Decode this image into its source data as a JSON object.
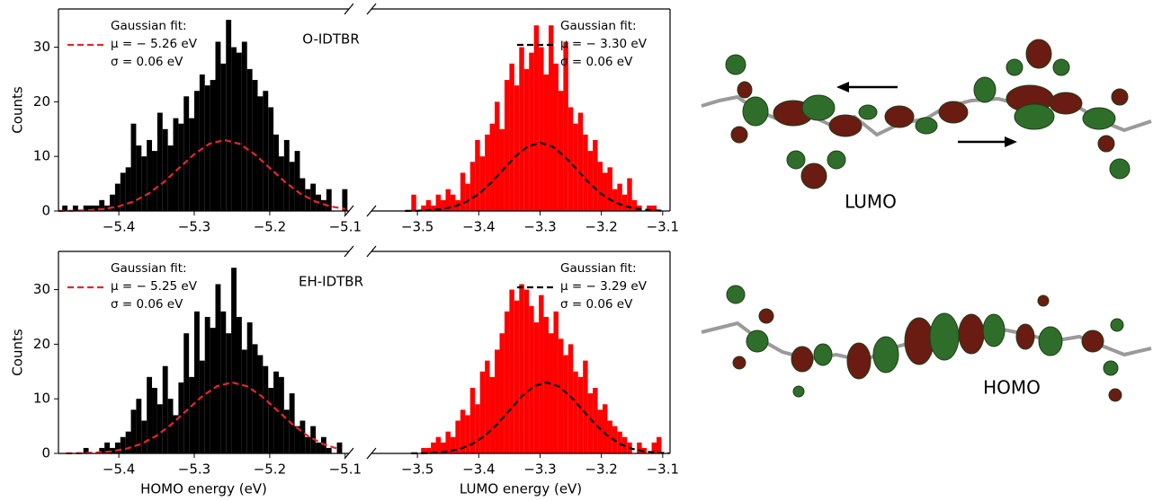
{
  "chart_data": [
    {
      "type": "histogram",
      "panel_label": "O-IDTBR",
      "ylabel": "Counts",
      "color": "#000000",
      "bins": [
        -5.475,
        -5.468,
        -5.461,
        -5.454,
        -5.447,
        -5.44,
        -5.433,
        -5.426,
        -5.419,
        -5.412,
        -5.405,
        -5.398,
        -5.391,
        -5.384,
        -5.377,
        -5.37,
        -5.363,
        -5.356,
        -5.349,
        -5.342,
        -5.335,
        -5.328,
        -5.321,
        -5.314,
        -5.307,
        -5.3,
        -5.293,
        -5.286,
        -5.279,
        -5.272,
        -5.265,
        -5.258,
        -5.251,
        -5.244,
        -5.237,
        -5.23,
        -5.223,
        -5.216,
        -5.209,
        -5.202,
        -5.195,
        -5.188,
        -5.181,
        -5.174,
        -5.167,
        -5.16,
        -5.153,
        -5.146,
        -5.139,
        -5.132,
        -5.125,
        -5.118,
        -5.111,
        -5.104,
        -5.097
      ],
      "values": [
        1,
        0,
        1,
        0,
        1,
        1,
        1,
        2,
        1,
        3,
        5,
        7,
        8,
        16,
        12,
        10,
        13,
        11,
        18,
        15,
        12,
        17,
        16,
        21,
        17,
        22,
        25,
        23,
        24,
        31,
        27,
        35,
        30,
        29,
        31,
        26,
        24,
        21,
        22,
        19,
        14,
        10,
        13,
        9,
        11,
        6,
        4,
        5,
        3,
        2,
        4,
        0,
        0,
        4
      ],
      "xlim": [
        -5.48,
        -5.095
      ],
      "ylim": [
        0,
        37
      ],
      "xticks": [
        {
          "value": -5.4,
          "label": "−5.4"
        },
        {
          "value": -5.3,
          "label": "−5.3"
        },
        {
          "value": -5.2,
          "label": "−5.2"
        },
        {
          "value": -5.1,
          "label": "−5.1"
        }
      ],
      "yticks": [
        0,
        10,
        20,
        30
      ],
      "fit": {
        "legend": [
          "Gaussian fit:",
          "μ = − 5.26 eV",
          "σ = 0.06 eV"
        ],
        "color": "#e8262a",
        "x": [
          -5.48,
          -5.46,
          -5.44,
          -5.42,
          -5.4,
          -5.38,
          -5.36,
          -5.34,
          -5.32,
          -5.3,
          -5.28,
          -5.26,
          -5.24,
          -5.22,
          -5.2,
          -5.18,
          -5.16,
          -5.14,
          -5.12,
          -5.1
        ],
        "values": [
          0.02,
          0.05,
          0.14,
          0.37,
          0.86,
          1.76,
          3.24,
          5.34,
          7.88,
          10.41,
          12.3,
          13,
          12.3,
          10.41,
          7.88,
          5.34,
          3.24,
          1.76,
          0.86,
          0.37
        ]
      }
    },
    {
      "type": "histogram",
      "color": "#ff0000",
      "bins": [
        -3.51,
        -3.502,
        -3.494,
        -3.486,
        -3.478,
        -3.47,
        -3.462,
        -3.454,
        -3.446,
        -3.438,
        -3.43,
        -3.422,
        -3.414,
        -3.406,
        -3.398,
        -3.39,
        -3.382,
        -3.374,
        -3.366,
        -3.358,
        -3.35,
        -3.342,
        -3.334,
        -3.326,
        -3.318,
        -3.31,
        -3.302,
        -3.294,
        -3.286,
        -3.278,
        -3.27,
        -3.262,
        -3.254,
        -3.246,
        -3.238,
        -3.23,
        -3.222,
        -3.214,
        -3.206,
        -3.198,
        -3.19,
        -3.182,
        -3.174,
        -3.166,
        -3.158,
        -3.15,
        -3.142,
        -3.134,
        -3.126,
        -3.118,
        -3.11
      ],
      "values": [
        3,
        0,
        1,
        2,
        1,
        3,
        2,
        4,
        3,
        2,
        7,
        5,
        9,
        13,
        10,
        14,
        16,
        20,
        15,
        24,
        27,
        23,
        30,
        26,
        29,
        34,
        30,
        25,
        34,
        27,
        22,
        31,
        19,
        16,
        18,
        14,
        11,
        13,
        9,
        7,
        8,
        4,
        5,
        3,
        6,
        2,
        1,
        0,
        1,
        1
      ],
      "xlim": [
        -3.575,
        -3.088
      ],
      "ylim": [
        0,
        37
      ],
      "xticks": [
        {
          "value": -3.5,
          "label": "−3.5"
        },
        {
          "value": -3.4,
          "label": "−3.4"
        },
        {
          "value": -3.3,
          "label": "−3.3"
        },
        {
          "value": -3.2,
          "label": "−3.2"
        },
        {
          "value": -3.1,
          "label": "−3.1"
        }
      ],
      "fit": {
        "legend": [
          "Gaussian fit:",
          "μ = − 3.30 eV",
          "σ = 0.06 eV"
        ],
        "color": "#000000",
        "x": [
          -3.52,
          -3.5,
          -3.48,
          -3.46,
          -3.44,
          -3.42,
          -3.4,
          -3.38,
          -3.36,
          -3.34,
          -3.32,
          -3.3,
          -3.28,
          -3.26,
          -3.24,
          -3.22,
          -3.2,
          -3.18,
          -3.16,
          -3.14,
          -3.12,
          -3.1
        ],
        "values": [
          0.02,
          0.05,
          0.14,
          0.36,
          0.82,
          1.69,
          3.11,
          5.14,
          7.59,
          10.01,
          11.83,
          12.5,
          11.83,
          10.01,
          7.59,
          5.14,
          3.11,
          1.69,
          0.82,
          0.36,
          0.14,
          0.05
        ]
      }
    },
    {
      "type": "histogram",
      "panel_label": "EH-IDTBR",
      "ylabel": "Counts",
      "xlabel": "HOMO energy (eV)",
      "color": "#000000",
      "bins": [
        -5.475,
        -5.468,
        -5.461,
        -5.454,
        -5.447,
        -5.44,
        -5.433,
        -5.426,
        -5.419,
        -5.412,
        -5.405,
        -5.398,
        -5.391,
        -5.384,
        -5.377,
        -5.37,
        -5.363,
        -5.356,
        -5.349,
        -5.342,
        -5.335,
        -5.328,
        -5.321,
        -5.314,
        -5.307,
        -5.3,
        -5.293,
        -5.286,
        -5.279,
        -5.272,
        -5.265,
        -5.258,
        -5.251,
        -5.244,
        -5.237,
        -5.23,
        -5.223,
        -5.216,
        -5.209,
        -5.202,
        -5.195,
        -5.188,
        -5.181,
        -5.174,
        -5.167,
        -5.16,
        -5.153,
        -5.146,
        -5.139,
        -5.132,
        -5.125,
        -5.118,
        -5.111,
        -5.104,
        -5.097
      ],
      "values": [
        0,
        0,
        0,
        0,
        1,
        0,
        0,
        1,
        2,
        1,
        2,
        3,
        4,
        8,
        10,
        6,
        14,
        12,
        9,
        16,
        10,
        7,
        13,
        22,
        14,
        26,
        17,
        25,
        23,
        31,
        26,
        22,
        34,
        25,
        19,
        24,
        20,
        18,
        16,
        12,
        15,
        14,
        8,
        11,
        5,
        6,
        3,
        5,
        2,
        3,
        1,
        0,
        2,
        0
      ],
      "xlim": [
        -5.48,
        -5.095
      ],
      "ylim": [
        0,
        37
      ],
      "xticks": [
        {
          "value": -5.4,
          "label": "−5.4"
        },
        {
          "value": -5.3,
          "label": "−5.3"
        },
        {
          "value": -5.2,
          "label": "−5.2"
        },
        {
          "value": -5.1,
          "label": "−5.1"
        }
      ],
      "yticks": [
        0,
        10,
        20,
        30
      ],
      "fit": {
        "legend": [
          "Gaussian fit:",
          "μ = − 5.25 eV",
          "σ = 0.06 eV"
        ],
        "color": "#e8262a",
        "x": [
          -5.47,
          -5.45,
          -5.43,
          -5.41,
          -5.39,
          -5.37,
          -5.35,
          -5.33,
          -5.31,
          -5.29,
          -5.27,
          -5.25,
          -5.23,
          -5.21,
          -5.19,
          -5.17,
          -5.15,
          -5.13,
          -5.11
        ],
        "values": [
          0.02,
          0.05,
          0.14,
          0.37,
          0.86,
          1.76,
          3.24,
          5.34,
          7.88,
          10.41,
          12.3,
          13,
          12.3,
          10.41,
          7.88,
          5.34,
          3.24,
          1.76,
          0.86
        ]
      }
    },
    {
      "type": "histogram",
      "xlabel": "LUMO energy (eV)",
      "color": "#ff0000",
      "bins": [
        -3.51,
        -3.502,
        -3.494,
        -3.486,
        -3.478,
        -3.47,
        -3.462,
        -3.454,
        -3.446,
        -3.438,
        -3.43,
        -3.422,
        -3.414,
        -3.406,
        -3.398,
        -3.39,
        -3.382,
        -3.374,
        -3.366,
        -3.358,
        -3.35,
        -3.342,
        -3.334,
        -3.326,
        -3.318,
        -3.31,
        -3.302,
        -3.294,
        -3.286,
        -3.278,
        -3.27,
        -3.262,
        -3.254,
        -3.246,
        -3.238,
        -3.23,
        -3.222,
        -3.214,
        -3.206,
        -3.198,
        -3.19,
        -3.182,
        -3.174,
        -3.166,
        -3.158,
        -3.15,
        -3.142,
        -3.134,
        -3.126,
        -3.118,
        -3.11,
        -3.102
      ],
      "values": [
        0,
        0,
        1,
        1,
        2,
        3,
        2,
        4,
        3,
        6,
        8,
        7,
        12,
        9,
        15,
        17,
        14,
        19,
        22,
        26,
        30,
        28,
        31,
        30,
        27,
        24,
        29,
        25,
        22,
        26,
        21,
        18,
        20,
        15,
        14,
        17,
        11,
        12,
        8,
        9,
        6,
        5,
        4,
        3,
        2,
        0,
        2,
        1,
        0,
        2,
        3
      ],
      "xlim": [
        -3.575,
        -3.088
      ],
      "ylim": [
        0,
        37
      ],
      "xticks": [
        {
          "value": -3.5,
          "label": "−3.5"
        },
        {
          "value": -3.4,
          "label": "−3.4"
        },
        {
          "value": -3.3,
          "label": "−3.3"
        },
        {
          "value": -3.2,
          "label": "−3.2"
        },
        {
          "value": -3.1,
          "label": "−3.1"
        }
      ],
      "fit": {
        "legend": [
          "Gaussian fit:",
          "μ = − 3.29 eV",
          "σ = 0.06 eV"
        ],
        "color": "#000000",
        "x": [
          -3.51,
          -3.49,
          -3.47,
          -3.45,
          -3.43,
          -3.41,
          -3.39,
          -3.37,
          -3.35,
          -3.33,
          -3.31,
          -3.29,
          -3.27,
          -3.25,
          -3.23,
          -3.21,
          -3.19,
          -3.17,
          -3.15,
          -3.13,
          -3.11,
          -3.09
        ],
        "values": [
          0.02,
          0.05,
          0.14,
          0.37,
          0.86,
          1.76,
          3.24,
          5.34,
          7.88,
          10.41,
          12.3,
          13,
          12.3,
          10.41,
          7.88,
          5.34,
          3.24,
          1.76,
          0.86,
          0.37,
          0.14,
          0.05
        ]
      }
    }
  ],
  "orbitals": [
    {
      "label": "LUMO"
    },
    {
      "label": "HOMO"
    }
  ]
}
